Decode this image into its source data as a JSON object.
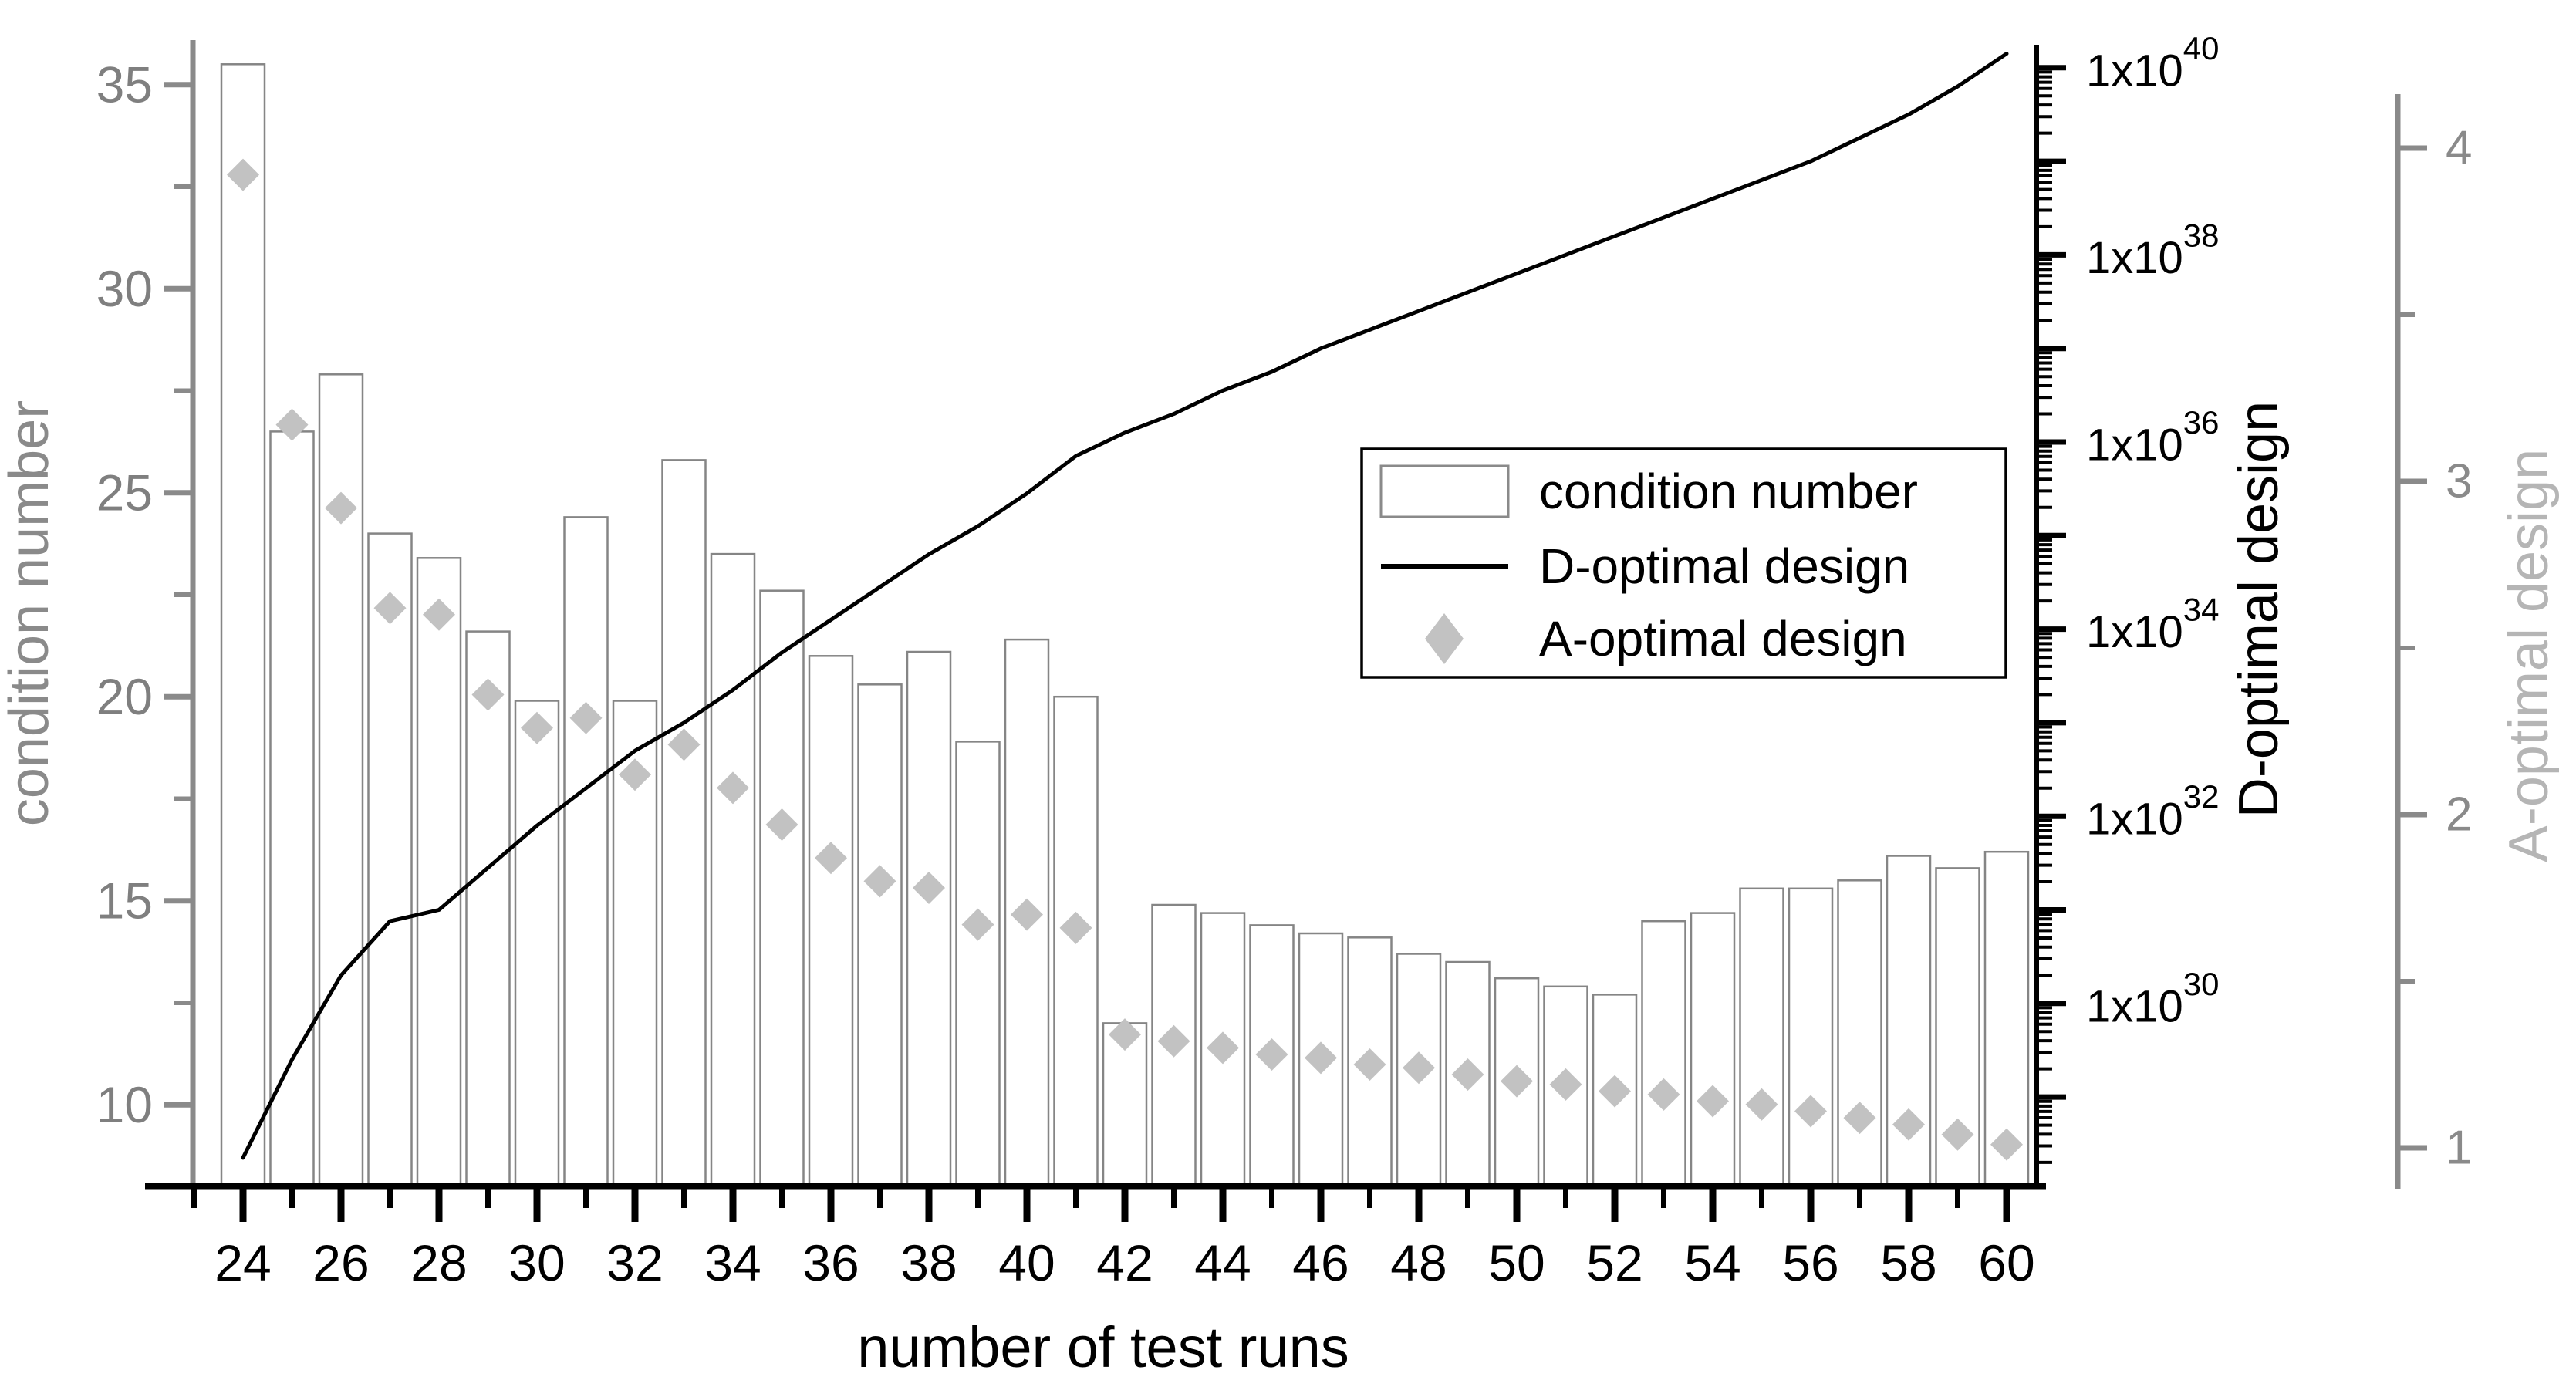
{
  "chart_data": {
    "type": "combo",
    "title": "",
    "xlabel": "number of test runs",
    "ylabel_left": "condition number",
    "ylabel_d": "D-optimal design",
    "ylabel_a": "A-optimal design",
    "x": [
      24,
      25,
      26,
      27,
      28,
      29,
      30,
      31,
      32,
      33,
      34,
      35,
      36,
      37,
      38,
      39,
      40,
      41,
      42,
      43,
      44,
      45,
      46,
      47,
      48,
      49,
      50,
      51,
      52,
      53,
      54,
      55,
      56,
      57,
      58,
      59,
      60
    ],
    "series": [
      {
        "name": "condition number",
        "type": "bar",
        "axis": "left",
        "values": [
          35.5,
          26.5,
          27.9,
          24.0,
          23.4,
          21.6,
          19.9,
          24.4,
          19.9,
          25.8,
          23.5,
          22.6,
          21.0,
          20.3,
          21.1,
          18.9,
          21.4,
          20.0,
          12.0,
          14.9,
          14.7,
          14.4,
          14.2,
          14.1,
          13.7,
          13.5,
          13.1,
          12.9,
          12.7,
          14.5,
          14.7,
          15.3,
          15.3,
          15.5,
          16.1,
          15.8,
          16.2
        ]
      },
      {
        "name": "D-optimal design",
        "type": "line",
        "axis": "d_log",
        "log10_values": [
          28.35,
          29.4,
          30.3,
          30.88,
          31.0,
          31.45,
          31.9,
          32.3,
          32.7,
          33.0,
          33.35,
          33.75,
          34.1,
          34.45,
          34.8,
          35.1,
          35.45,
          35.85,
          36.1,
          36.3,
          36.55,
          36.75,
          37.0,
          37.2,
          37.4,
          37.6,
          37.8,
          38.0,
          38.2,
          38.4,
          38.6,
          38.8,
          39.0,
          39.25,
          39.5,
          39.8,
          40.15
        ]
      },
      {
        "name": "A-optimal design",
        "type": "scatter",
        "axis": "a_right",
        "values": [
          3.92,
          3.17,
          2.92,
          2.62,
          2.6,
          2.36,
          2.26,
          2.29,
          2.12,
          2.21,
          2.08,
          1.97,
          1.87,
          1.8,
          1.78,
          1.67,
          1.7,
          1.66,
          1.34,
          1.32,
          1.3,
          1.28,
          1.27,
          1.25,
          1.24,
          1.22,
          1.2,
          1.19,
          1.17,
          1.16,
          1.14,
          1.13,
          1.11,
          1.09,
          1.07,
          1.04,
          1.01
        ]
      }
    ],
    "axes": {
      "left": {
        "label": "condition number",
        "major_ticks": [
          10,
          15,
          20,
          25,
          30,
          35
        ],
        "minor_ticks": [
          12.5,
          17.5,
          22.5,
          27.5,
          32.5
        ],
        "range": [
          8,
          36.5
        ],
        "grid": false
      },
      "x": {
        "label": "number of test runs",
        "major_ticks": [
          24,
          26,
          28,
          30,
          32,
          34,
          36,
          38,
          40,
          42,
          44,
          46,
          48,
          50,
          52,
          54,
          56,
          58,
          60
        ],
        "minor_ticks": [
          23,
          25,
          27,
          29,
          31,
          33,
          35,
          37,
          39,
          41,
          43,
          45,
          47,
          49,
          51,
          53,
          55,
          57,
          59
        ],
        "range": [
          22.9,
          60.8
        ]
      },
      "d": {
        "label": "D-optimal design",
        "scale": "log10",
        "labeled_exponents": [
          40,
          38,
          36,
          34,
          32,
          30
        ],
        "label_prefix": "1x10",
        "decade_range": [
          28,
          40.2
        ]
      },
      "a": {
        "label": "A-optimal design",
        "major_ticks": [
          4,
          3,
          2,
          1
        ],
        "minor_ticks": [
          3.5,
          2.5,
          1.5
        ],
        "range": [
          0.9,
          4.15
        ]
      }
    },
    "legend": {
      "position": "middle-right",
      "entries": [
        {
          "label": "condition number",
          "marker": "bar"
        },
        {
          "label": "D-optimal design",
          "marker": "line"
        },
        {
          "label": "A-optimal design",
          "marker": "diamond"
        }
      ]
    },
    "colors": {
      "bar_fill": "#ffffff",
      "bar_outline": "#858585",
      "line": "#000000",
      "diamond": "#c2c2c2",
      "gray_axis": "#8a8a8a",
      "gray_text": "#7f7f7f",
      "a_title_gray": "#b5b5b5",
      "black": "#000000",
      "background": "#ffffff"
    }
  }
}
